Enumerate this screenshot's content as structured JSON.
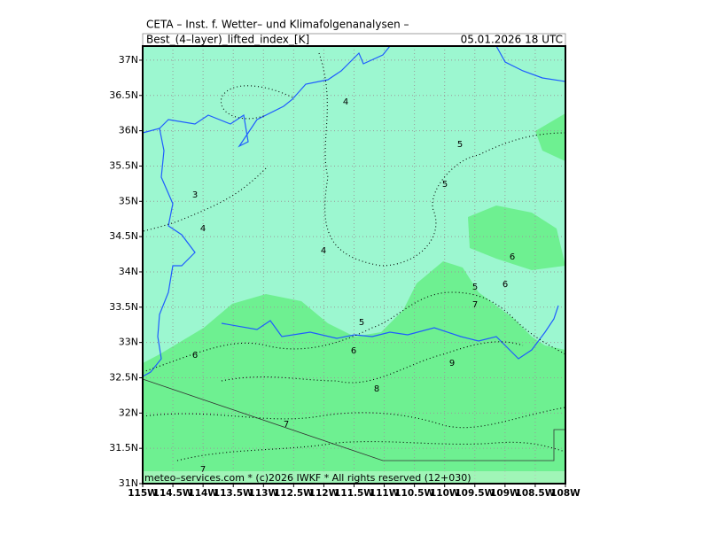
{
  "header": {
    "title": "CETA – Inst. f. Wetter– und Klimafolgenanalysen –",
    "field": "Best_(4–layer)_lifted_index_[K]",
    "date": "05.01.2026  18 UTC"
  },
  "map": {
    "lat_range": [
      31,
      37.2
    ],
    "lon_range": [
      -115,
      -108
    ],
    "lat_ticks": [
      {
        "value": 31,
        "label": "31N"
      },
      {
        "value": 31.5,
        "label": "31.5N"
      },
      {
        "value": 32,
        "label": "32N"
      },
      {
        "value": 32.5,
        "label": "32.5N"
      },
      {
        "value": 33,
        "label": "33N"
      },
      {
        "value": 33.5,
        "label": "33.5N"
      },
      {
        "value": 34,
        "label": "34N"
      },
      {
        "value": 34.5,
        "label": "34.5N"
      },
      {
        "value": 35,
        "label": "35N"
      },
      {
        "value": 35.5,
        "label": "35.5N"
      },
      {
        "value": 36,
        "label": "36N"
      },
      {
        "value": 36.5,
        "label": "36.5N"
      },
      {
        "value": 37,
        "label": "37N"
      }
    ],
    "lon_ticks": [
      {
        "value": -115,
        "label": "115W"
      },
      {
        "value": -114.5,
        "label": "114.5W"
      },
      {
        "value": -114,
        "label": "114W"
      },
      {
        "value": -113.5,
        "label": "113.5W"
      },
      {
        "value": -113,
        "label": "113W"
      },
      {
        "value": -112.5,
        "label": "112.5W"
      },
      {
        "value": -112,
        "label": "112W"
      },
      {
        "value": -111.5,
        "label": "111.5W"
      },
      {
        "value": -111,
        "label": "111W"
      },
      {
        "value": -110.5,
        "label": "110.5W"
      },
      {
        "value": -110,
        "label": "110W"
      },
      {
        "value": -109.5,
        "label": "109.5W"
      },
      {
        "value": -109,
        "label": "109W"
      },
      {
        "value": -108.5,
        "label": "108.5W"
      },
      {
        "value": -108,
        "label": "108W"
      }
    ],
    "contour_labels": [
      "3",
      "4",
      "4",
      "5",
      "5",
      "4",
      "6",
      "5",
      "6",
      "7",
      "5",
      "6",
      "6",
      "9",
      "8",
      "7",
      "7"
    ],
    "footer": "meteo–services.com * (c)2026 IWKF * All rights reserved (12+030)"
  }
}
